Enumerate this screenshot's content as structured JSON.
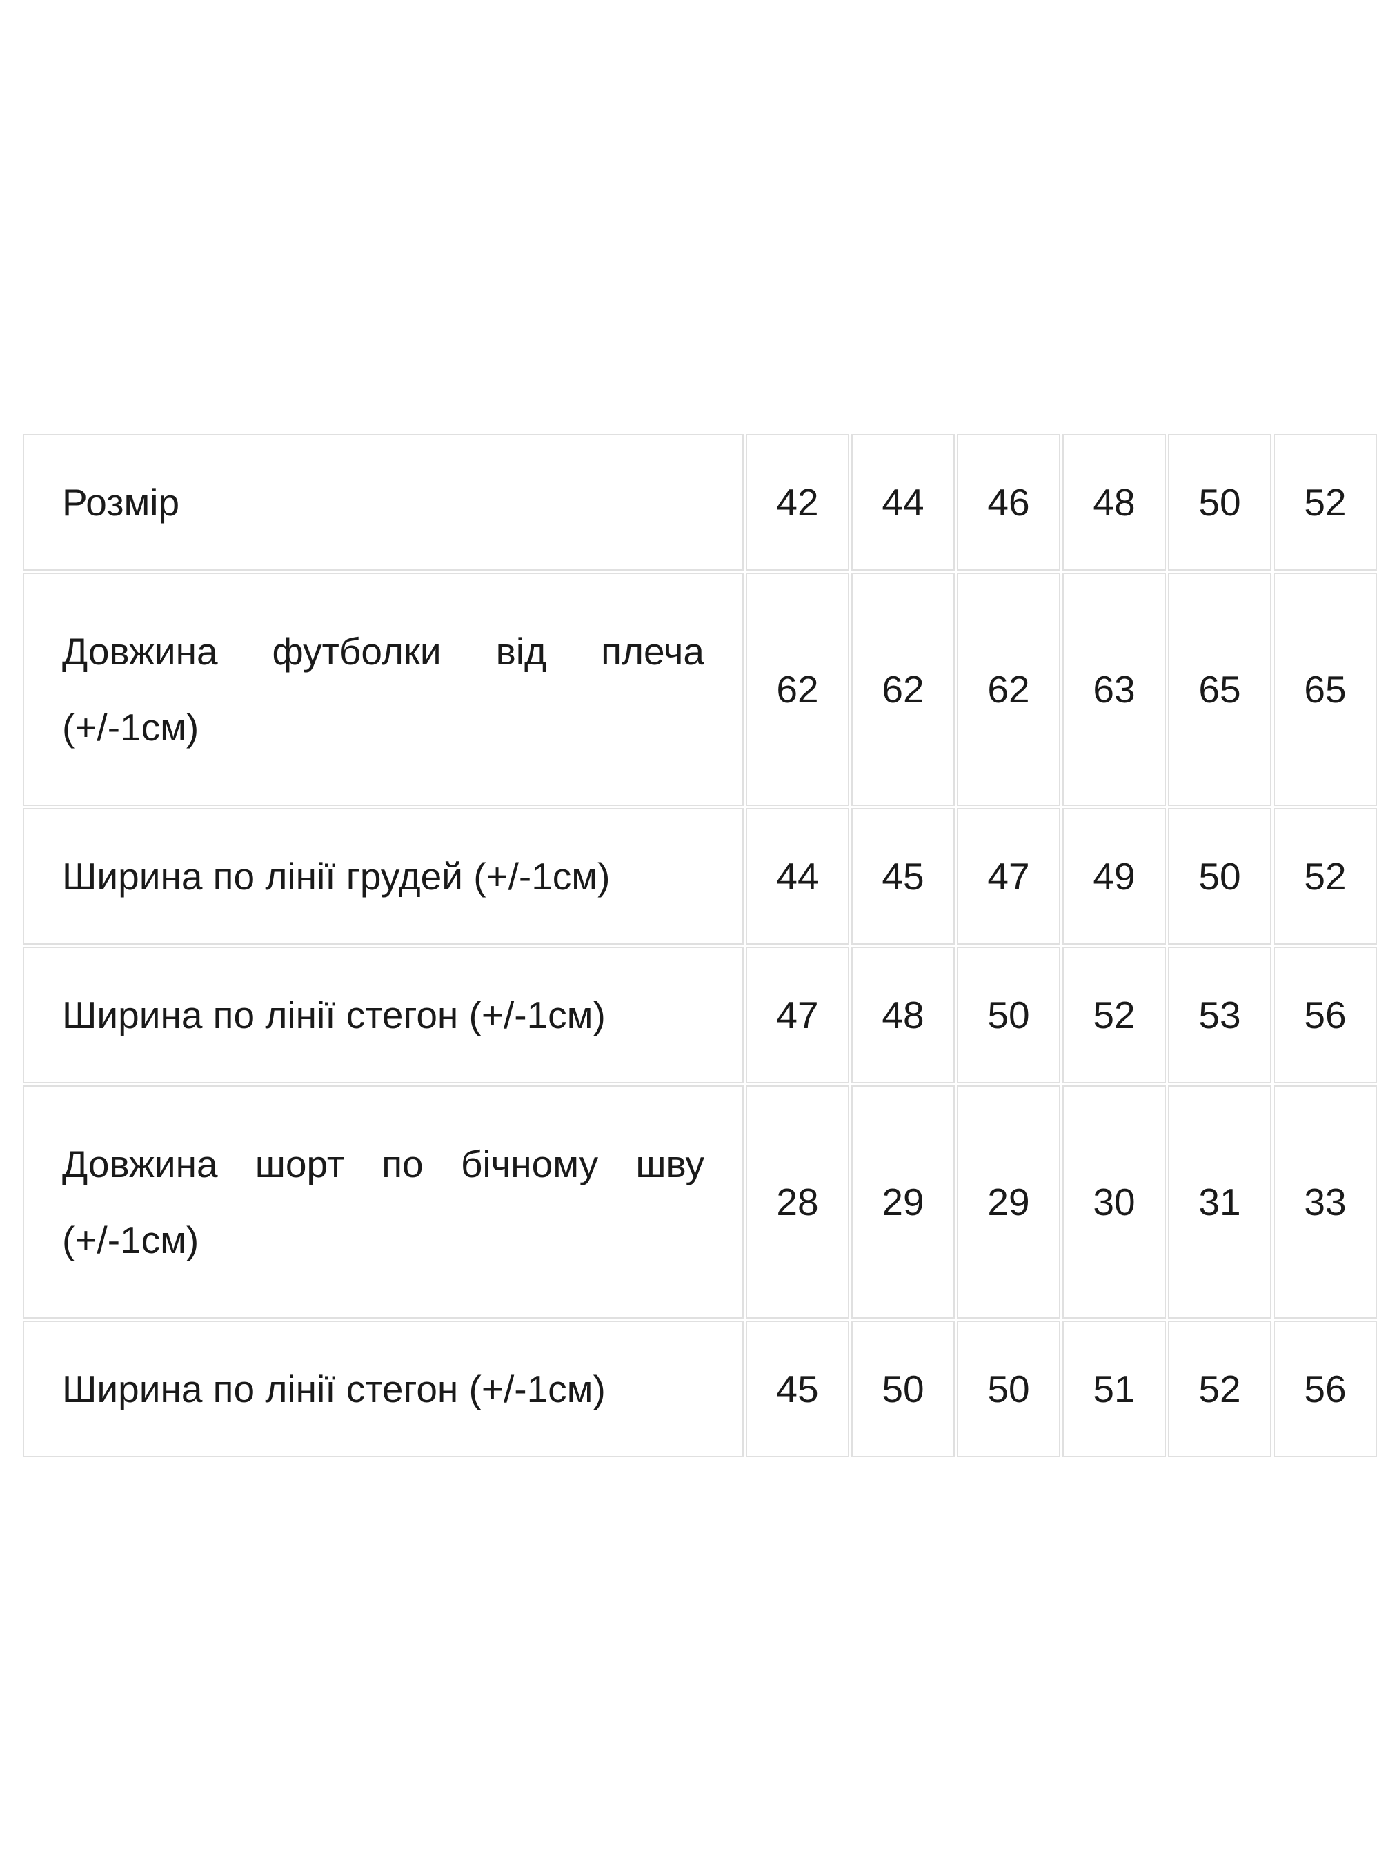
{
  "size_table": {
    "rows": [
      {
        "label": "Розмір",
        "values": [
          "42",
          "44",
          "46",
          "48",
          "50",
          "52"
        ]
      },
      {
        "label": "Довжина футболки від плеча (+/-1см)",
        "values": [
          "62",
          "62",
          "62",
          "63",
          "65",
          "65"
        ]
      },
      {
        "label": "Ширина по лінії грудей (+/-1см)",
        "values": [
          "44",
          "45",
          "47",
          "49",
          "50",
          "52"
        ]
      },
      {
        "label": "Ширина по лінії стегон (+/-1см)",
        "values": [
          "47",
          "48",
          "50",
          "52",
          "53",
          "56"
        ]
      },
      {
        "label": "Довжина шорт по бічному шву (+/-1см)",
        "values": [
          "28",
          "29",
          "29",
          "30",
          "31",
          "33"
        ]
      },
      {
        "label": "Ширина по лінії стегон (+/-1см)",
        "values": [
          "45",
          "50",
          "50",
          "51",
          "52",
          "56"
        ]
      }
    ]
  },
  "colors": {
    "background": "#ffffff",
    "cell_border": "#e0e0e0",
    "text": "#1a1a1a"
  }
}
